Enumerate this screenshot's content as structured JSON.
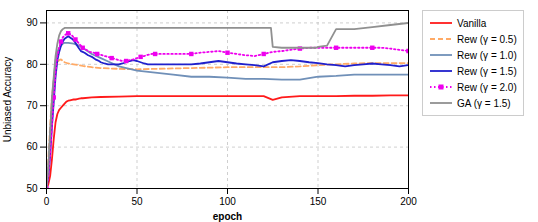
{
  "chart_data": {
    "type": "line",
    "title": "",
    "xlabel": "epoch",
    "ylabel": "Unbiased Accuracy",
    "xlim": [
      0,
      200
    ],
    "ylim": [
      50,
      93
    ],
    "xticks": [
      0,
      50,
      100,
      150,
      200
    ],
    "yticks": [
      50,
      60,
      70,
      80,
      90
    ],
    "grid": true,
    "legend": "right",
    "series": [
      {
        "name": "Vanilla",
        "color": "#ff1a1a",
        "line_style": "solid",
        "x": [
          0,
          1,
          2,
          3,
          4,
          5,
          6,
          7,
          8,
          9,
          10,
          11,
          12,
          13,
          14,
          15,
          16,
          17,
          18,
          19,
          20,
          25,
          30,
          40,
          50,
          60,
          70,
          80,
          90,
          100,
          110,
          120,
          125,
          130,
          140,
          150,
          160,
          170,
          180,
          190,
          200
        ],
        "values": [
          50,
          51,
          53,
          57,
          62,
          66,
          68,
          69,
          69.5,
          70,
          70.5,
          71,
          71.2,
          71.3,
          71.4,
          71.5,
          71.5,
          71.6,
          71.7,
          71.8,
          71.8,
          72,
          72.1,
          72.2,
          72.3,
          72.3,
          72.3,
          72.3,
          72.3,
          72.3,
          72.3,
          72.3,
          71.4,
          72.0,
          72.3,
          72.3,
          72.3,
          72.4,
          72.4,
          72.5,
          72.5
        ]
      },
      {
        "name": "Rew (γ = 0.5)",
        "color": "#ffaa66",
        "line_style": "dashed",
        "x": [
          0,
          1,
          2,
          3,
          4,
          5,
          6,
          7,
          8,
          9,
          10,
          12,
          15,
          18,
          20,
          25,
          30,
          35,
          40,
          50,
          60,
          70,
          80,
          90,
          100,
          110,
          120,
          130,
          140,
          150,
          160,
          170,
          180,
          190,
          200
        ],
        "values": [
          50,
          57,
          65,
          72,
          76,
          79,
          80.5,
          81,
          81.2,
          80.8,
          80.5,
          80.2,
          80.0,
          79.8,
          79.6,
          79.3,
          79.1,
          79.0,
          78.9,
          78.8,
          78.9,
          79.0,
          79.1,
          79.2,
          79.3,
          79.3,
          79.3,
          79.3,
          79.5,
          79.8,
          80.0,
          80.2,
          80.3,
          80.3,
          80.3
        ]
      },
      {
        "name": "Rew (γ = 1.0)",
        "color": "#7090b8",
        "line_style": "solid",
        "x": [
          0,
          1,
          2,
          3,
          4,
          5,
          6,
          7,
          8,
          9,
          10,
          12,
          15,
          18,
          20,
          25,
          30,
          35,
          40,
          50,
          60,
          70,
          80,
          90,
          100,
          110,
          120,
          130,
          140,
          150,
          160,
          170,
          180,
          190,
          200
        ],
        "values": [
          50,
          55,
          63,
          70,
          76,
          81,
          83,
          84,
          84.5,
          85,
          85.2,
          85.2,
          85,
          84.5,
          84,
          82.5,
          81.5,
          80.5,
          79.5,
          78.5,
          78,
          77.5,
          77,
          77,
          76.8,
          76.5,
          76.5,
          76.3,
          76.3,
          77,
          77.2,
          77.5,
          77.5,
          77.5,
          77.5
        ]
      },
      {
        "name": "Rew (γ = 1.5)",
        "color": "#2020cc",
        "line_style": "solid",
        "x": [
          0,
          1,
          2,
          3,
          4,
          5,
          6,
          7,
          8,
          9,
          10,
          11,
          12,
          13,
          14,
          15,
          16,
          17,
          18,
          19,
          20,
          21,
          22,
          23,
          24,
          25,
          26,
          27,
          28,
          29,
          30,
          32,
          34,
          36,
          38,
          40,
          42,
          44,
          46,
          48,
          50,
          52,
          54,
          56,
          58,
          60,
          65,
          70,
          75,
          80,
          85,
          90,
          95,
          100,
          105,
          110,
          115,
          120,
          125,
          130,
          135,
          140,
          145,
          150,
          155,
          160,
          165,
          170,
          175,
          180,
          185,
          190,
          195,
          200
        ],
        "values": [
          50,
          53,
          58,
          65,
          71,
          77,
          81,
          83,
          84.5,
          85.5,
          86.2,
          86.5,
          86.8,
          86.5,
          86.2,
          85.8,
          85.2,
          84.5,
          83.8,
          83.2,
          83.0,
          82.8,
          82.5,
          82.2,
          82.0,
          81.8,
          81.5,
          81.2,
          81.0,
          80.8,
          80.5,
          80.2,
          80.0,
          80.0,
          80.0,
          80.0,
          80.2,
          80.5,
          80.8,
          81.0,
          80.8,
          80.5,
          80.2,
          80.0,
          80.0,
          80.0,
          80.0,
          80.0,
          80.0,
          80.0,
          80.2,
          80.5,
          80.8,
          80.5,
          80.2,
          80.0,
          79.8,
          79.5,
          80.5,
          80.8,
          81.0,
          80.8,
          80.5,
          80.3,
          80.0,
          79.8,
          79.5,
          79.8,
          80.0,
          80.2,
          80.0,
          79.8,
          79.5,
          79.8
        ]
      },
      {
        "name": "Rew (γ = 2.0)",
        "color": "#ee00ee",
        "line_style": "dotted",
        "marker": "square",
        "x": [
          0,
          1,
          2,
          3,
          4,
          5,
          6,
          7,
          8,
          9,
          10,
          11,
          12,
          13,
          14,
          15,
          16,
          17,
          18,
          19,
          20,
          22,
          24,
          26,
          28,
          30,
          32,
          34,
          36,
          38,
          40,
          42,
          44,
          46,
          48,
          50,
          52,
          54,
          56,
          58,
          60,
          65,
          70,
          75,
          80,
          85,
          90,
          95,
          100,
          105,
          110,
          115,
          120,
          125,
          130,
          135,
          140,
          145,
          150,
          155,
          160,
          165,
          170,
          175,
          180,
          185,
          190,
          195,
          200
        ],
        "values": [
          50,
          53,
          58,
          65,
          72,
          78,
          82,
          84,
          85.5,
          86.5,
          87.0,
          87.3,
          87.5,
          87.3,
          87.0,
          86.5,
          86.0,
          85.5,
          85.0,
          84.5,
          84.0,
          83.5,
          83.0,
          82.8,
          82.5,
          82.3,
          82.0,
          81.8,
          81.5,
          81.3,
          81.0,
          80.8,
          80.8,
          81.0,
          81.2,
          81.5,
          81.8,
          82.0,
          82.3,
          82.5,
          82.5,
          82.5,
          82.5,
          82.5,
          82.5,
          82.8,
          83.0,
          83.2,
          82.8,
          82.5,
          82.2,
          82.0,
          82.5,
          83.0,
          83.2,
          83.5,
          83.8,
          84.0,
          84.0,
          84.0,
          84.0,
          84.0,
          84.0,
          84.0,
          84.0,
          84.0,
          83.8,
          83.5,
          83.2
        ]
      },
      {
        "name": "GA (γ = 1.5)",
        "color": "#909090",
        "line_style": "solid",
        "x": [
          0,
          1,
          2,
          3,
          4,
          5,
          6,
          7,
          8,
          9,
          10,
          12,
          15,
          18,
          20,
          25,
          30,
          40,
          50,
          60,
          70,
          80,
          90,
          100,
          110,
          120,
          124,
          125,
          130,
          135,
          140,
          145,
          149,
          150,
          155,
          160,
          170,
          180,
          190,
          200
        ],
        "values": [
          50,
          55,
          63,
          72,
          77,
          82,
          85,
          87,
          88,
          88.5,
          88.8,
          88.8,
          88.8,
          88.8,
          88.8,
          88.8,
          88.8,
          88.8,
          88.8,
          88.8,
          88.8,
          88.8,
          88.8,
          88.8,
          88.8,
          88.8,
          88.8,
          84.2,
          84.0,
          84.0,
          84.0,
          84.0,
          84.0,
          84.2,
          84.5,
          88.5,
          88.5,
          89.0,
          89.5,
          90.0
        ]
      }
    ]
  }
}
